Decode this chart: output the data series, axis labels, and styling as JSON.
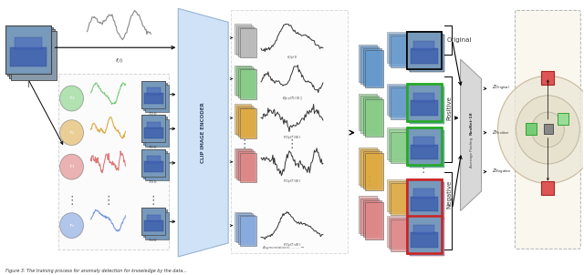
{
  "fig_width": 6.4,
  "fig_height": 3.02,
  "bg_color": "#ffffff",
  "aug_colors": [
    "#77cc77",
    "#ddaa44",
    "#dd7777",
    "#7799dd"
  ],
  "aug_tau_labels": [
    "tau_1",
    "tau_2",
    "tau_3",
    "tau_n"
  ],
  "aug_img_labels": [
    "T_1(I)",
    "T_2(I)",
    "T_3(I)",
    "T_n(I)"
  ],
  "feature_colors": [
    "#bbbbbb",
    "#88cc88",
    "#ddaa44",
    "#dd8888",
    "#88aadd"
  ],
  "feat_labels": [
    "f_{Clip}(I)",
    "E[v_p(T_1(I))]",
    "F_{Clip}(T_2(I))",
    "F_{Clip}(T_3(I))",
    "F_{Clip}(T_n(I))"
  ],
  "pool_colors": [
    "#6699cc",
    "#88cc88",
    "#ddaa44",
    "#dd8888"
  ],
  "caption": "Figure 3: The training process for anomaly detection for knowledge by the data..."
}
